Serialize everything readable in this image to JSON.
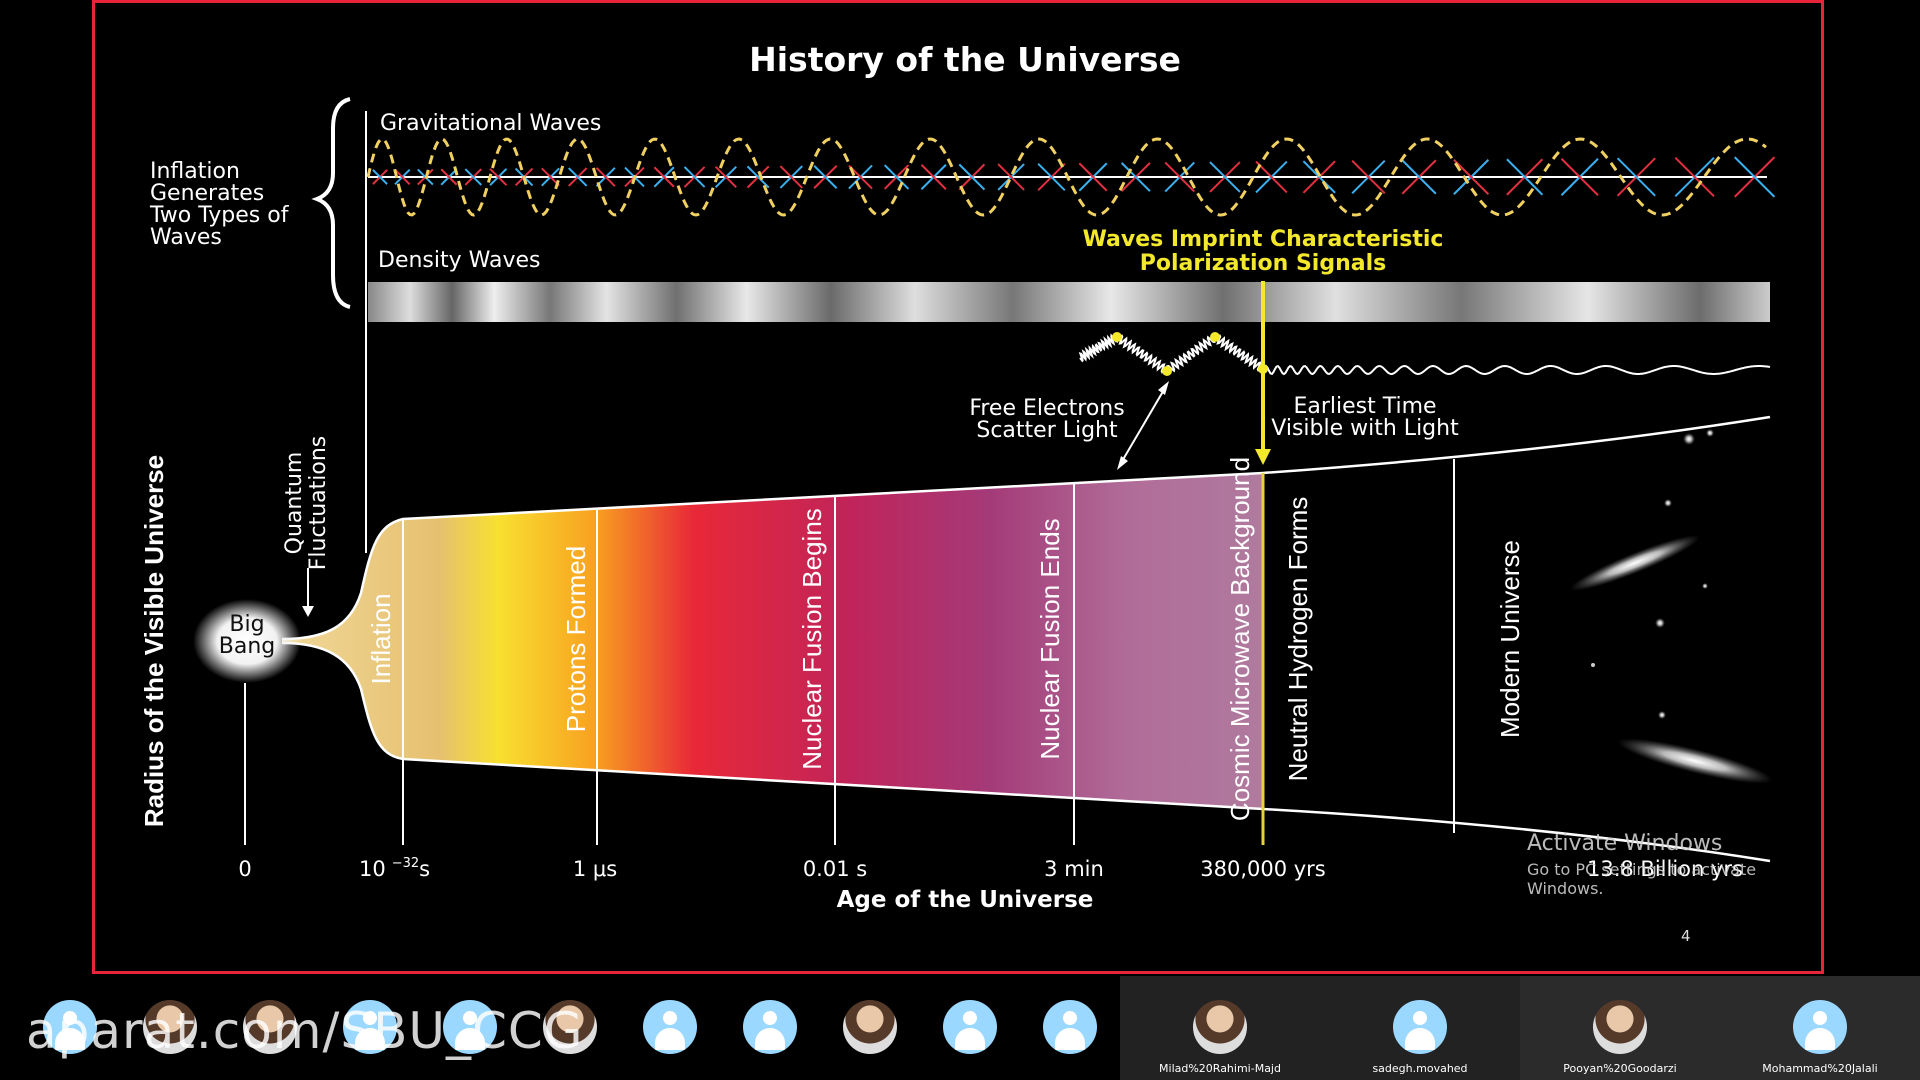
{
  "slide": {
    "title": "History of the Universe",
    "inflation_label": [
      "Inflation",
      "Generates",
      "Two Types of",
      "Waves"
    ],
    "grav_waves": "Gravitational Waves",
    "density_waves": "Density Waves",
    "polarization": [
      "Waves Imprint Characteristic",
      "Polarization Signals"
    ],
    "free_electrons": [
      "Free Electrons",
      "Scatter Light"
    ],
    "earliest": [
      "Earliest Time",
      "Visible with Light"
    ],
    "y_axis": "Radius of the Visible Universe",
    "quantum": [
      "Quantum",
      "Fluctuations"
    ],
    "big_bang": [
      "Big",
      "Bang"
    ],
    "eras": [
      "Inflation",
      "Protons Formed",
      "Nuclear Fusion Begins",
      "Nuclear Fusion Ends",
      "Cosmic Microwave Background",
      "Neutral Hydrogen Forms",
      "Modern Universe"
    ],
    "ticks": {
      "t0": "0",
      "t1_base": "10",
      "t1_exp": "−32",
      "t1_unit": "s",
      "t2": "1 μs",
      "t3": "0.01 s",
      "t4": "3 min",
      "t5": "380,000 yrs",
      "t6": "13.8 Billion yrs"
    },
    "x_axis": "Age of the Universe",
    "page_number": "4"
  },
  "watermark": {
    "line1": "Activate Windows",
    "line2": "Go to PC settings to activate Windows."
  },
  "overlay": "aparat.com/SBU_CCG",
  "colors": {
    "frame": "#e8243a",
    "accent_yellow": "#f4e82c",
    "grav_yellow": "#f0d060",
    "arrow_red": "#e23040",
    "arrow_blue": "#3ab0f0"
  },
  "participants": [
    {
      "name": "",
      "avatar": "generic"
    },
    {
      "name": "",
      "avatar": "photo"
    },
    {
      "name": "",
      "avatar": "photo"
    },
    {
      "name": "",
      "avatar": "generic"
    },
    {
      "name": "",
      "avatar": "generic"
    },
    {
      "name": "",
      "avatar": "photo"
    },
    {
      "name": "",
      "avatar": "generic"
    },
    {
      "name": "",
      "avatar": "generic"
    },
    {
      "name": "",
      "avatar": "photo"
    },
    {
      "name": "",
      "avatar": "generic"
    },
    {
      "name": "",
      "avatar": "generic"
    },
    {
      "name": "Milad%20Rahimi-Majd",
      "avatar": "photo"
    },
    {
      "name": "sadegh.movahed",
      "avatar": "generic"
    },
    {
      "name": "Pooyan%20Goodarzi",
      "avatar": "photo"
    },
    {
      "name": "Mohammad%20Jalali",
      "avatar": "generic"
    }
  ]
}
